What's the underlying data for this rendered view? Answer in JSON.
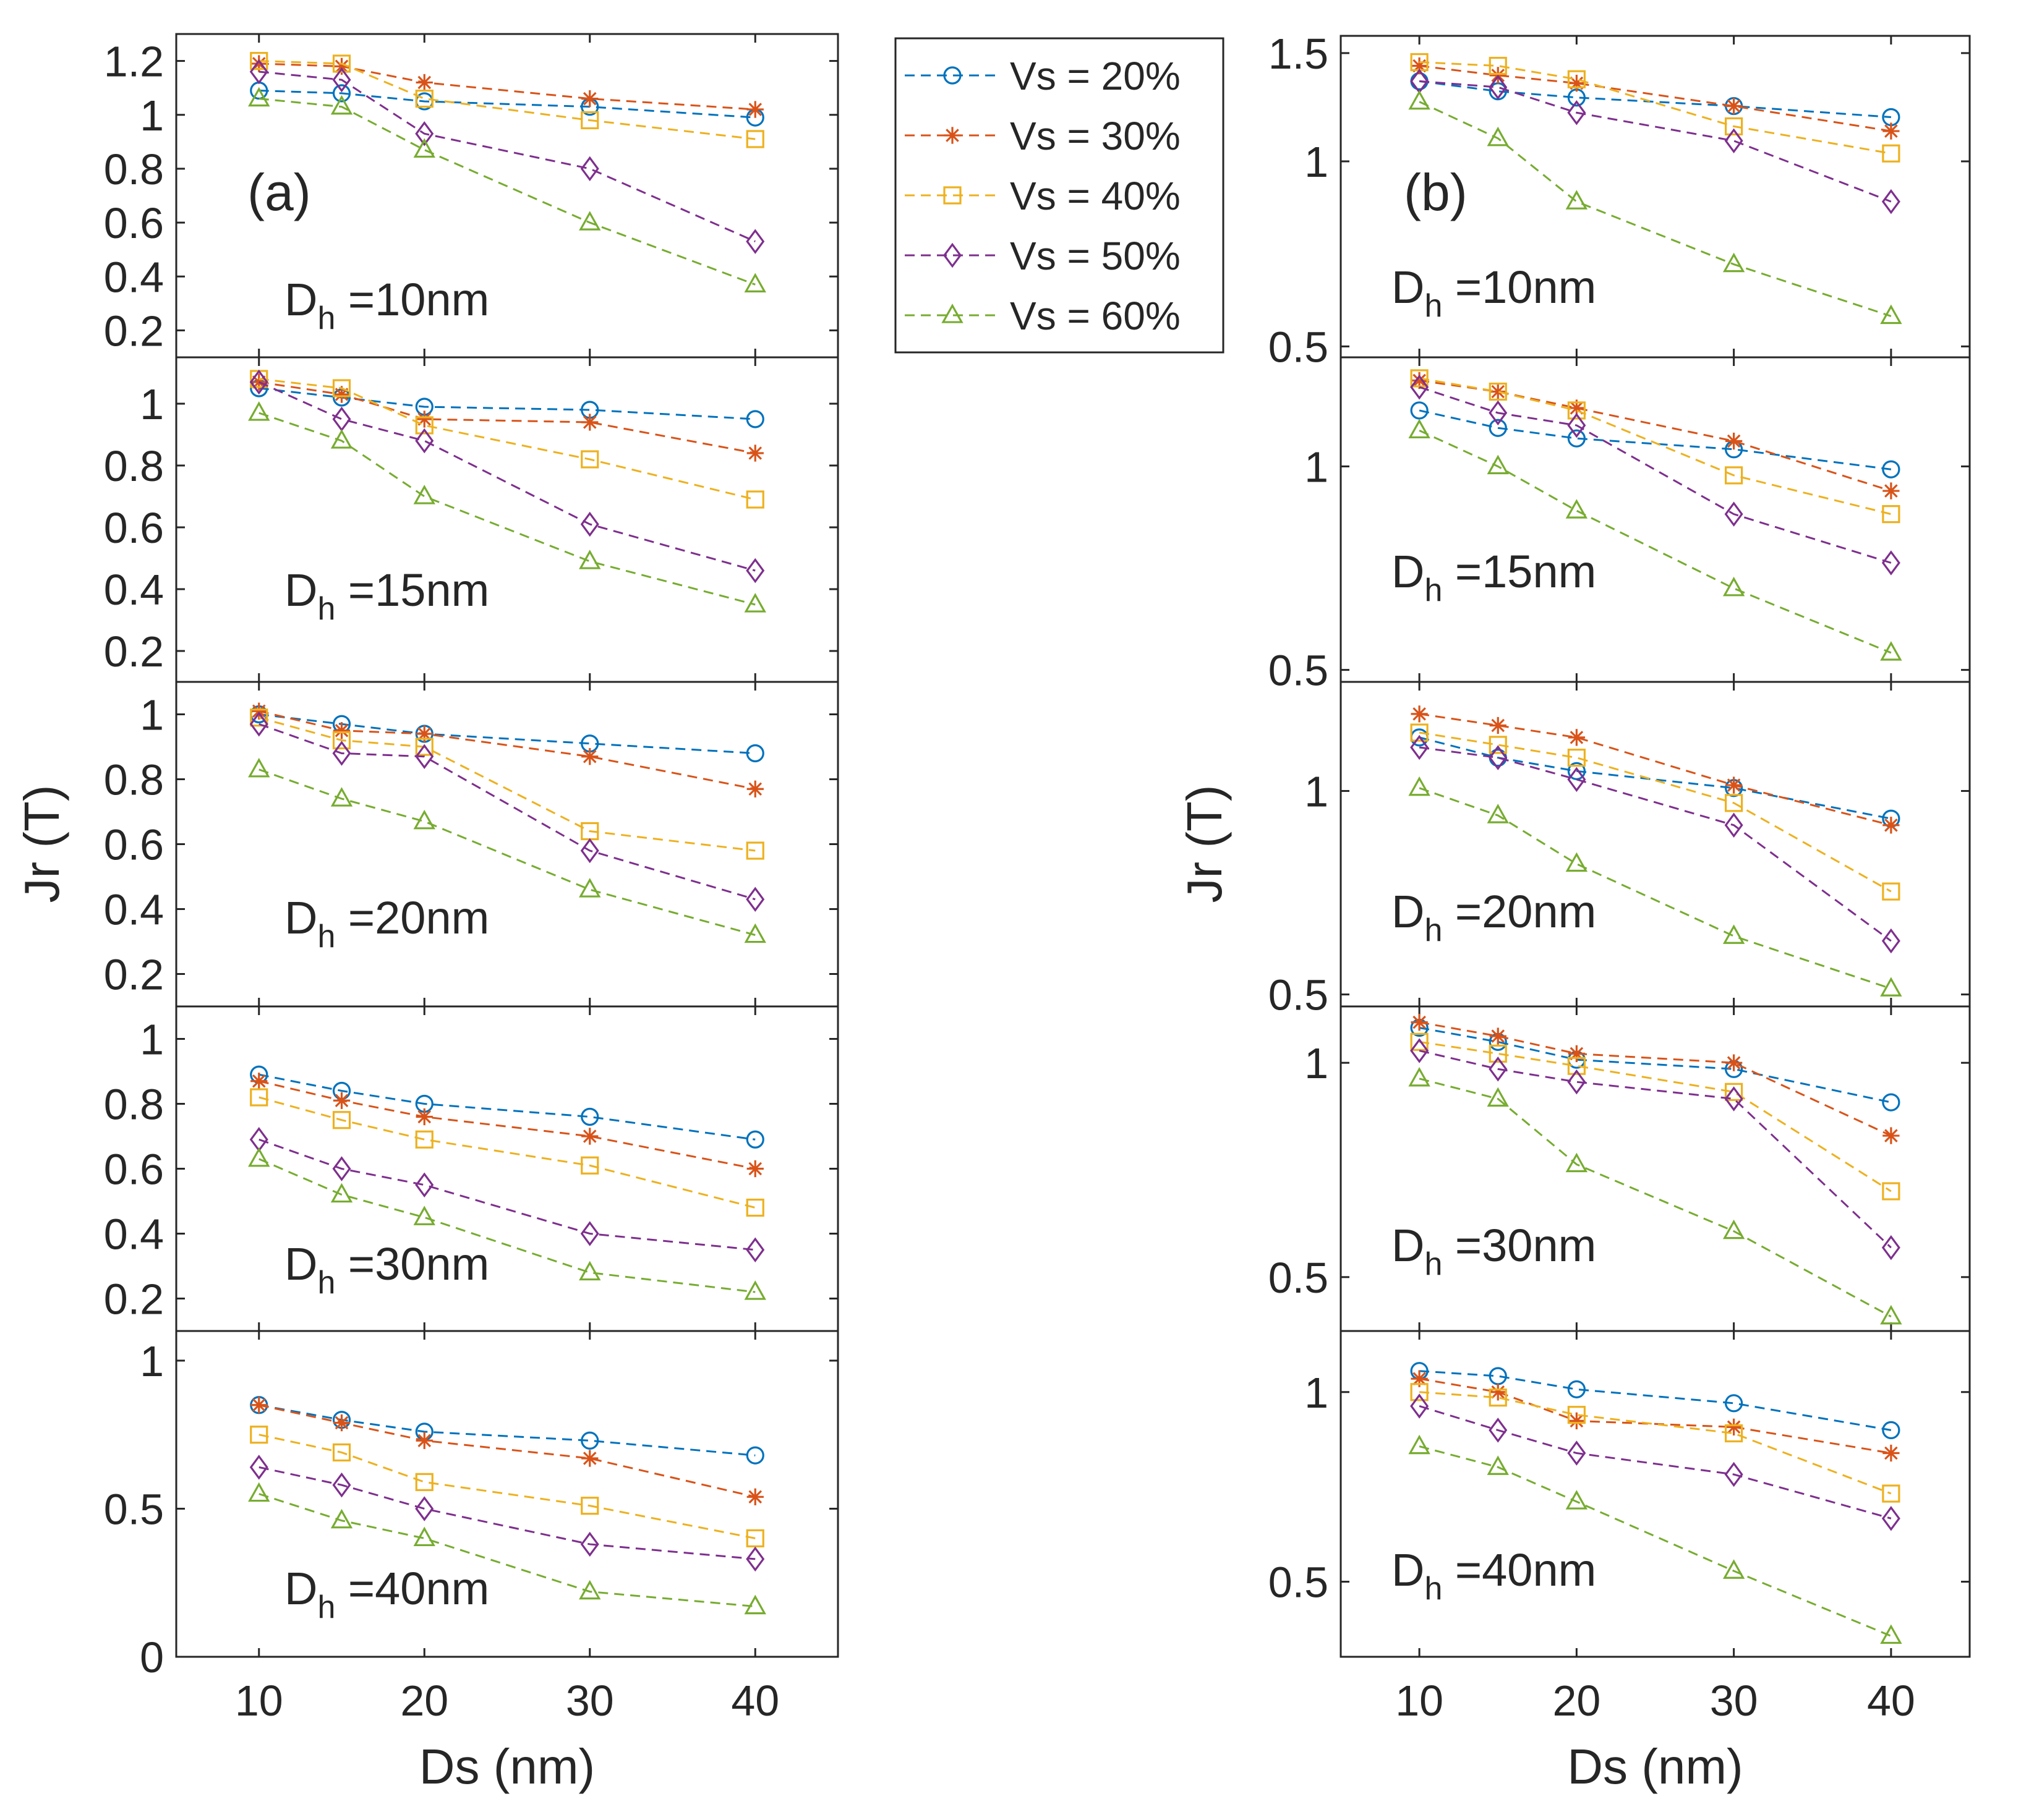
{
  "colors": {
    "axis": "#262626",
    "series": [
      "#0072BD",
      "#D95319",
      "#EDB120",
      "#7E2F8E",
      "#77AC30"
    ]
  },
  "legend": {
    "entries": [
      {
        "label": "Vs = 20%",
        "marker": "circle"
      },
      {
        "label": "Vs = 30%",
        "marker": "asterisk"
      },
      {
        "label": "Vs = 40%",
        "marker": "square"
      },
      {
        "label": "Vs = 50%",
        "marker": "diamond"
      },
      {
        "label": "Vs = 60%",
        "marker": "triangle"
      }
    ]
  },
  "chart_data": [
    {
      "type": "line",
      "panel": "(a)",
      "xlabel": "Ds (nm)",
      "ylabel": "Jr (T)",
      "x": [
        10,
        15,
        20,
        30,
        40
      ],
      "xlim": [
        5,
        45
      ],
      "xticks": [
        10,
        20,
        30,
        40
      ],
      "xticklabels": [
        "10",
        "20",
        "30",
        "40"
      ],
      "subplots": [
        {
          "label_text": "D",
          "label_sub": "h",
          "label_rest": " =10nm",
          "ylim": [
            0.1,
            1.3
          ],
          "yticks": [
            0.2,
            0.4,
            0.6,
            0.8,
            1,
            1.2
          ],
          "yticklabels": [
            "0.2",
            "0.4",
            "0.6",
            "0.8",
            "1",
            "1.2"
          ],
          "series": [
            {
              "name": "Vs = 20%",
              "values": [
                1.09,
                1.08,
                1.05,
                1.03,
                0.99
              ]
            },
            {
              "name": "Vs = 30%",
              "values": [
                1.19,
                1.18,
                1.12,
                1.06,
                1.02
              ]
            },
            {
              "name": "Vs = 40%",
              "values": [
                1.2,
                1.19,
                1.06,
                0.98,
                0.91
              ]
            },
            {
              "name": "Vs = 50%",
              "values": [
                1.16,
                1.13,
                0.93,
                0.8,
                0.53
              ]
            },
            {
              "name": "Vs = 60%",
              "values": [
                1.06,
                1.03,
                0.87,
                0.6,
                0.37
              ]
            }
          ]
        },
        {
          "label_text": "D",
          "label_sub": "h",
          "label_rest": " =15nm",
          "ylim": [
            0.1,
            1.15
          ],
          "yticks": [
            0.2,
            0.4,
            0.6,
            0.8,
            1
          ],
          "yticklabels": [
            "0.2",
            "0.4",
            "0.6",
            "0.8",
            "1"
          ],
          "series": [
            {
              "name": "Vs = 20%",
              "values": [
                1.05,
                1.02,
                0.99,
                0.98,
                0.95
              ]
            },
            {
              "name": "Vs = 30%",
              "values": [
                1.07,
                1.03,
                0.95,
                0.94,
                0.84
              ]
            },
            {
              "name": "Vs = 40%",
              "values": [
                1.08,
                1.05,
                0.93,
                0.82,
                0.69
              ]
            },
            {
              "name": "Vs = 50%",
              "values": [
                1.07,
                0.95,
                0.88,
                0.61,
                0.46
              ]
            },
            {
              "name": "Vs = 60%",
              "values": [
                0.97,
                0.88,
                0.7,
                0.49,
                0.35
              ]
            }
          ]
        },
        {
          "label_text": "D",
          "label_sub": "h",
          "label_rest": " =20nm",
          "ylim": [
            0.1,
            1.1
          ],
          "yticks": [
            0.2,
            0.4,
            0.6,
            0.8,
            1
          ],
          "yticklabels": [
            "0.2",
            "0.4",
            "0.6",
            "0.8",
            "1"
          ],
          "series": [
            {
              "name": "Vs = 20%",
              "values": [
                1.0,
                0.97,
                0.94,
                0.91,
                0.88
              ]
            },
            {
              "name": "Vs = 30%",
              "values": [
                1.01,
                0.95,
                0.94,
                0.87,
                0.77
              ]
            },
            {
              "name": "Vs = 40%",
              "values": [
                0.99,
                0.92,
                0.9,
                0.64,
                0.58
              ]
            },
            {
              "name": "Vs = 50%",
              "values": [
                0.97,
                0.88,
                0.87,
                0.58,
                0.43
              ]
            },
            {
              "name": "Vs = 60%",
              "values": [
                0.83,
                0.74,
                0.67,
                0.46,
                0.32
              ]
            }
          ]
        },
        {
          "label_text": "D",
          "label_sub": "h",
          "label_rest": " =30nm",
          "ylim": [
            0.1,
            1.1
          ],
          "yticks": [
            0.2,
            0.4,
            0.6,
            0.8,
            1
          ],
          "yticklabels": [
            "0.2",
            "0.4",
            "0.6",
            "0.8",
            "1"
          ],
          "series": [
            {
              "name": "Vs = 20%",
              "values": [
                0.89,
                0.84,
                0.8,
                0.76,
                0.69
              ]
            },
            {
              "name": "Vs = 30%",
              "values": [
                0.87,
                0.81,
                0.76,
                0.7,
                0.6
              ]
            },
            {
              "name": "Vs = 40%",
              "values": [
                0.82,
                0.75,
                0.69,
                0.61,
                0.48
              ]
            },
            {
              "name": "Vs = 50%",
              "values": [
                0.69,
                0.6,
                0.55,
                0.4,
                0.35
              ]
            },
            {
              "name": "Vs = 60%",
              "values": [
                0.63,
                0.52,
                0.45,
                0.28,
                0.22
              ]
            }
          ]
        },
        {
          "label_text": "D",
          "label_sub": "h",
          "label_rest": " =40nm",
          "ylim": [
            0,
            1.1
          ],
          "yticks": [
            0,
            0.5,
            1
          ],
          "yticklabels": [
            "0",
            "0.5",
            "1"
          ],
          "series": [
            {
              "name": "Vs = 20%",
              "values": [
                0.85,
                0.8,
                0.76,
                0.73,
                0.68
              ]
            },
            {
              "name": "Vs = 30%",
              "values": [
                0.85,
                0.79,
                0.73,
                0.67,
                0.54
              ]
            },
            {
              "name": "Vs = 40%",
              "values": [
                0.75,
                0.69,
                0.59,
                0.51,
                0.4
              ]
            },
            {
              "name": "Vs = 50%",
              "values": [
                0.64,
                0.58,
                0.5,
                0.38,
                0.33
              ]
            },
            {
              "name": "Vs = 60%",
              "values": [
                0.55,
                0.46,
                0.4,
                0.22,
                0.17
              ]
            }
          ]
        }
      ]
    },
    {
      "type": "line",
      "panel": "(b)",
      "xlabel": "Ds (nm)",
      "ylabel": "Jr (T)",
      "yscale": "log",
      "x": [
        10,
        15,
        20,
        30,
        40
      ],
      "xlim": [
        5,
        45
      ],
      "xticks": [
        10,
        20,
        30,
        40
      ],
      "xticklabels": [
        "10",
        "20",
        "30",
        "40"
      ],
      "subplots": [
        {
          "label_text": "D",
          "label_sub": "h",
          "label_rest": " =10nm",
          "ylim": [
            0.48,
            1.6
          ],
          "yticks": [
            0.5,
            1,
            1.5
          ],
          "yticklabels": [
            "0.5",
            "1",
            "1.5"
          ],
          "series": [
            {
              "name": "Vs = 20%",
              "values": [
                1.35,
                1.3,
                1.27,
                1.23,
                1.18
              ]
            },
            {
              "name": "Vs = 30%",
              "values": [
                1.43,
                1.38,
                1.34,
                1.23,
                1.12
              ]
            },
            {
              "name": "Vs = 40%",
              "values": [
                1.45,
                1.43,
                1.36,
                1.14,
                1.03
              ]
            },
            {
              "name": "Vs = 50%",
              "values": [
                1.35,
                1.32,
                1.2,
                1.08,
                0.86
              ]
            },
            {
              "name": "Vs = 60%",
              "values": [
                1.25,
                1.09,
                0.86,
                0.68,
                0.56
              ]
            }
          ]
        },
        {
          "label_text": "D",
          "label_sub": "h",
          "label_rest": " =15nm",
          "ylim": [
            0.48,
            1.45
          ],
          "yticks": [
            0.5,
            1
          ],
          "yticklabels": [
            "0.5",
            "1"
          ],
          "series": [
            {
              "name": "Vs = 20%",
              "values": [
                1.21,
                1.14,
                1.1,
                1.06,
                0.99
              ]
            },
            {
              "name": "Vs = 30%",
              "values": [
                1.34,
                1.29,
                1.22,
                1.09,
                0.92
              ]
            },
            {
              "name": "Vs = 40%",
              "values": [
                1.35,
                1.29,
                1.21,
                0.97,
                0.85
              ]
            },
            {
              "name": "Vs = 50%",
              "values": [
                1.31,
                1.2,
                1.15,
                0.85,
                0.72
              ]
            },
            {
              "name": "Vs = 60%",
              "values": [
                1.13,
                1.0,
                0.86,
                0.66,
                0.53
              ]
            }
          ]
        },
        {
          "label_text": "D",
          "label_sub": "h",
          "label_rest": " =20nm",
          "ylim": [
            0.48,
            1.45
          ],
          "yticks": [
            0.5,
            1
          ],
          "yticklabels": [
            "0.5",
            "1"
          ],
          "series": [
            {
              "name": "Vs = 20%",
              "values": [
                1.2,
                1.12,
                1.07,
                1.01,
                0.91
              ]
            },
            {
              "name": "Vs = 30%",
              "values": [
                1.3,
                1.25,
                1.2,
                1.02,
                0.89
              ]
            },
            {
              "name": "Vs = 40%",
              "values": [
                1.22,
                1.17,
                1.12,
                0.96,
                0.71
              ]
            },
            {
              "name": "Vs = 50%",
              "values": [
                1.16,
                1.12,
                1.04,
                0.89,
                0.6
              ]
            },
            {
              "name": "Vs = 60%",
              "values": [
                1.01,
                0.92,
                0.78,
                0.61,
                0.51
              ]
            }
          ]
        },
        {
          "label_text": "D",
          "label_sub": "h",
          "label_rest": " =30nm",
          "ylim": [
            0.42,
            1.2
          ],
          "yticks": [
            0.5,
            1
          ],
          "yticklabels": [
            "0.5",
            "1"
          ],
          "series": [
            {
              "name": "Vs = 20%",
              "values": [
                1.12,
                1.07,
                1.01,
                0.98,
                0.88
              ]
            },
            {
              "name": "Vs = 30%",
              "values": [
                1.14,
                1.09,
                1.03,
                1.0,
                0.79
              ]
            },
            {
              "name": "Vs = 40%",
              "values": [
                1.07,
                1.03,
                0.99,
                0.91,
                0.66
              ]
            },
            {
              "name": "Vs = 50%",
              "values": [
                1.04,
                0.98,
                0.94,
                0.89,
                0.55
              ]
            },
            {
              "name": "Vs = 60%",
              "values": [
                0.95,
                0.89,
                0.72,
                0.58,
                0.44
              ]
            }
          ]
        },
        {
          "label_text": "D",
          "label_sub": "h",
          "label_rest": " =40nm",
          "ylim": [
            0.38,
            1.25
          ],
          "yticks": [
            0.5,
            1
          ],
          "yticklabels": [
            "0.5",
            "1"
          ],
          "series": [
            {
              "name": "Vs = 20%",
              "values": [
                1.08,
                1.06,
                1.01,
                0.96,
                0.87
              ]
            },
            {
              "name": "Vs = 30%",
              "values": [
                1.05,
                1.0,
                0.9,
                0.88,
                0.8
              ]
            },
            {
              "name": "Vs = 40%",
              "values": [
                1.0,
                0.98,
                0.92,
                0.86,
                0.69
              ]
            },
            {
              "name": "Vs = 50%",
              "values": [
                0.95,
                0.87,
                0.8,
                0.74,
                0.63
              ]
            },
            {
              "name": "Vs = 60%",
              "values": [
                0.82,
                0.76,
                0.67,
                0.52,
                0.41
              ]
            }
          ]
        }
      ]
    }
  ]
}
